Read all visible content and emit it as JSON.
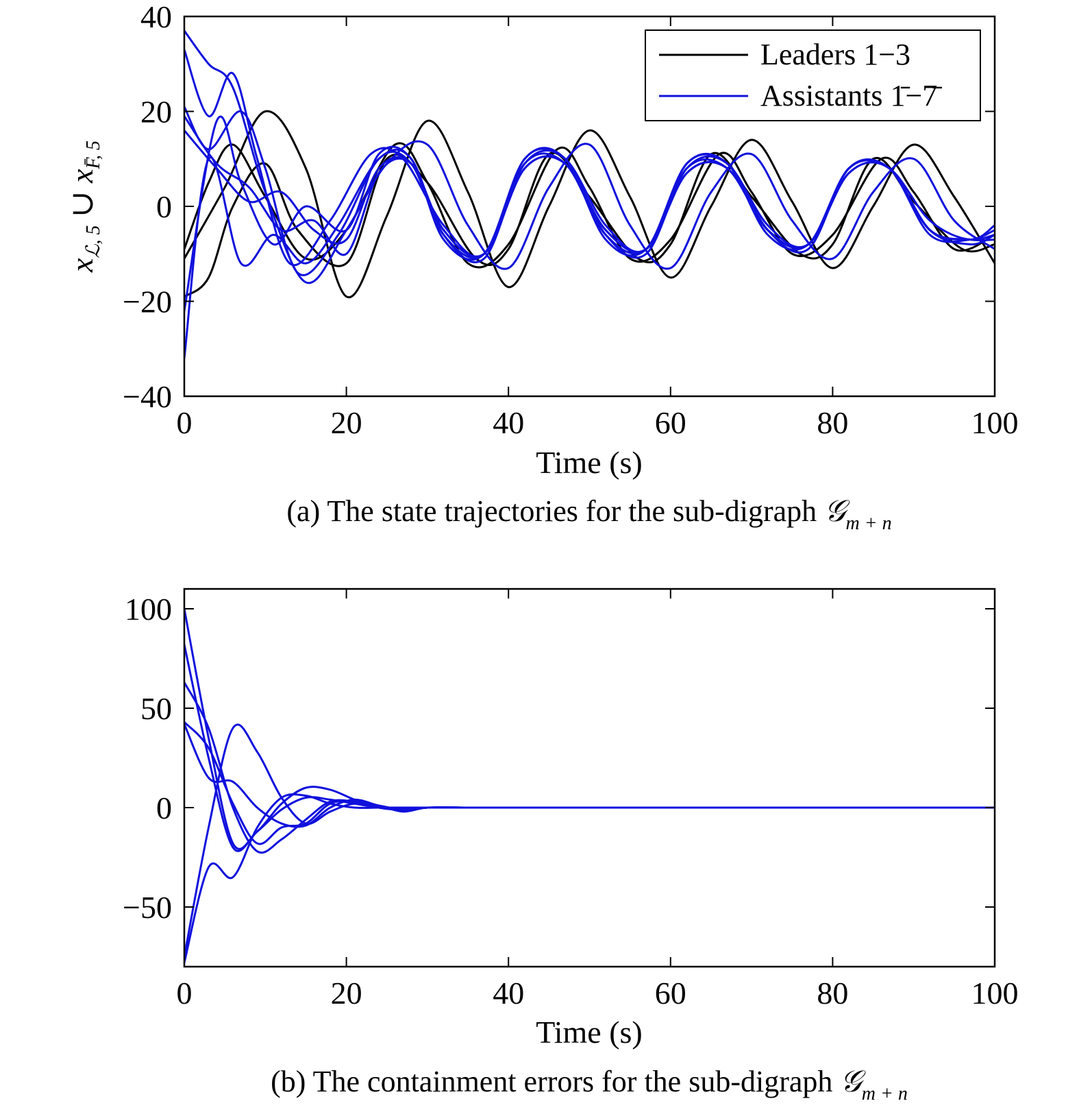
{
  "chart_data": [
    {
      "type": "line",
      "caption": "(a) The state trajectories for the sub-digraph ",
      "caption_math": "𝒢",
      "caption_sub": "m + n",
      "xlabel": "Time (s)",
      "ylabel": {
        "x1": "x",
        "sub1": "ℒ, 5",
        "union": " ∪ ",
        "x2": "x",
        "sub2": "F̄, 5"
      },
      "xlim": [
        0,
        100
      ],
      "ylim": [
        -40,
        40
      ],
      "xticks": [
        "0",
        "20",
        "40",
        "60",
        "80",
        "100"
      ],
      "yticks": [
        "−40",
        "−20",
        "0",
        "20",
        "40"
      ],
      "xtick_values": [
        0,
        20,
        40,
        60,
        80,
        100
      ],
      "ytick_values": [
        -40,
        -20,
        0,
        20,
        40
      ],
      "grid": false,
      "legend_position": "top-right",
      "legend": [
        {
          "label": "Leaders 1−3",
          "color": "#000000"
        },
        {
          "label": "Assistants 1̄−7̄",
          "color": "#1010dd"
        }
      ],
      "series": [
        {
          "group": "Leaders 1−3",
          "color": "#000000",
          "x": [
            0,
            5,
            10,
            15,
            20,
            25,
            30,
            35,
            40,
            45,
            50,
            55,
            60,
            65,
            70,
            75,
            80,
            85,
            90,
            95,
            100
          ],
          "y": [
            -11,
            4,
            20,
            8,
            -19,
            -2,
            18,
            3,
            -17,
            0,
            16,
            2,
            -15,
            0,
            14,
            1,
            -13,
            0,
            13,
            2,
            -12
          ]
        },
        {
          "group": "Leaders 1−3",
          "color": "#000000",
          "x": [
            0,
            3,
            6,
            10,
            14,
            20,
            25,
            30,
            36,
            40,
            45,
            50,
            56,
            60,
            65,
            70,
            76,
            80,
            85,
            90,
            96,
            100
          ],
          "y": [
            -19,
            -15,
            0,
            9,
            -5,
            -12,
            10,
            5,
            -11,
            -9,
            11,
            2,
            -11,
            -8,
            11,
            2,
            -10,
            -8,
            10,
            1,
            -9,
            -8
          ]
        },
        {
          "group": "Leaders 1−3",
          "color": "#000000",
          "x": [
            0,
            3,
            6,
            10,
            15,
            20,
            26,
            30,
            35,
            40,
            46,
            50,
            55,
            60,
            66,
            70,
            75,
            80,
            86,
            90,
            95,
            100
          ],
          "y": [
            -9,
            5,
            13,
            2,
            -11,
            -5,
            13,
            5,
            -12,
            -8,
            12,
            4,
            -11,
            -7,
            11,
            3,
            -10,
            -6,
            10,
            3,
            -9,
            -6
          ]
        },
        {
          "group": "Assistants 1̄−7̄",
          "color": "#1010dd",
          "x": [
            0,
            3,
            6,
            10,
            15,
            20,
            25,
            30,
            35,
            40,
            45,
            50,
            55,
            60,
            65,
            70,
            75,
            80,
            85,
            90,
            95,
            100
          ],
          "y": [
            37,
            30,
            25,
            3,
            -16,
            -5,
            9,
            13,
            -4,
            -13,
            4,
            13,
            -4,
            -13,
            3,
            11,
            -3,
            -11,
            3,
            10,
            -3,
            -9
          ]
        },
        {
          "group": "Assistants 1̄−7̄",
          "color": "#1010dd",
          "x": [
            0,
            3,
            6,
            9,
            13,
            18,
            23,
            27,
            32,
            37,
            42,
            47,
            52,
            57,
            62,
            67,
            72,
            77,
            82,
            87,
            92,
            97,
            100
          ],
          "y": [
            33,
            19,
            28,
            10,
            -12,
            -3,
            11,
            10,
            -4,
            -10,
            10,
            10,
            -4,
            -9,
            9,
            9,
            -4,
            -8,
            8,
            8,
            -3,
            -7,
            -4
          ]
        },
        {
          "group": "Assistants 1̄−7̄",
          "color": "#1010dd",
          "x": [
            0,
            3,
            7,
            10,
            14,
            19,
            24,
            28,
            32,
            37,
            42,
            47,
            52,
            57,
            62,
            67,
            72,
            77,
            82,
            87,
            92,
            97,
            100
          ],
          "y": [
            21,
            12,
            20,
            8,
            -14,
            -6,
            10,
            9,
            -6,
            -10,
            9,
            9,
            -6,
            -9,
            8,
            8,
            -5,
            -8,
            8,
            8,
            -5,
            -7,
            -6
          ]
        },
        {
          "group": "Assistants 1̄−7̄",
          "color": "#1010dd",
          "x": [
            0,
            4,
            8,
            12,
            16,
            20,
            24,
            28,
            32,
            37,
            42,
            47,
            52,
            57,
            62,
            67,
            72,
            77,
            82,
            87,
            92,
            97,
            100
          ],
          "y": [
            16,
            8,
            1,
            3,
            -5,
            -7,
            8,
            9,
            -5,
            -10,
            8,
            9,
            -5,
            -9,
            7,
            8,
            -5,
            -8,
            7,
            8,
            -5,
            -7,
            -7
          ]
        },
        {
          "group": "Assistants 1̄−7̄",
          "color": "#1010dd",
          "x": [
            0,
            4,
            8,
            12,
            16,
            20,
            24,
            28,
            32,
            37,
            42,
            47,
            52,
            57,
            62,
            67,
            72,
            77,
            82,
            87,
            92,
            97,
            100
          ],
          "y": [
            19,
            9,
            4,
            -5,
            -3,
            -10,
            7,
            9,
            -5,
            -10,
            8,
            9,
            -5,
            -9,
            7,
            8,
            -5,
            -8,
            7,
            8,
            -5,
            -7,
            -6
          ]
        },
        {
          "group": "Assistants 1̄−7̄",
          "color": "#1010dd",
          "x": [
            0,
            4,
            7,
            11,
            15,
            20,
            24,
            28,
            32,
            37,
            42,
            47,
            52,
            57,
            62,
            67,
            72,
            77,
            82,
            87,
            92,
            97,
            100
          ],
          "y": [
            -22,
            18,
            5,
            -8,
            0,
            -5,
            11,
            10,
            -6,
            -11,
            9,
            10,
            -6,
            -10,
            8,
            9,
            -5,
            -9,
            8,
            8,
            -5,
            -8,
            -6
          ]
        },
        {
          "group": "Assistants 1̄−7̄",
          "color": "#1010dd",
          "x": [
            0,
            3,
            7,
            11,
            15,
            19,
            24,
            28,
            32,
            37,
            42,
            47,
            52,
            57,
            62,
            67,
            72,
            77,
            82,
            87,
            92,
            97,
            100
          ],
          "y": [
            -32,
            10,
            -12,
            -6,
            -12,
            -4,
            10,
            10,
            -7,
            -10,
            10,
            10,
            -7,
            -9,
            9,
            9,
            -6,
            -8,
            8,
            8,
            -6,
            -7,
            -5
          ]
        }
      ]
    },
    {
      "type": "line",
      "caption": "(b) The containment errors for the sub-digraph ",
      "caption_math": "𝒢",
      "caption_sub": "m + n",
      "xlabel": "Time (s)",
      "ylabel": "",
      "xlim": [
        0,
        100
      ],
      "ylim": [
        -80,
        110
      ],
      "xticks": [
        "0",
        "20",
        "40",
        "60",
        "80",
        "100"
      ],
      "yticks": [
        "−50",
        "0",
        "50",
        "100"
      ],
      "xtick_values": [
        0,
        20,
        40,
        60,
        80,
        100
      ],
      "ytick_values": [
        -50,
        0,
        50,
        100
      ],
      "grid": false,
      "series": [
        {
          "color": "#1010dd",
          "x": [
            0,
            3,
            6,
            9,
            12,
            15,
            18,
            21,
            24,
            27,
            30,
            35,
            40,
            50,
            100
          ],
          "y": [
            100,
            35,
            -18,
            -12,
            2,
            10,
            9,
            4,
            0,
            -1,
            0,
            0,
            0,
            0,
            0
          ]
        },
        {
          "color": "#1010dd",
          "x": [
            0,
            3,
            6,
            9,
            12,
            15,
            18,
            21,
            24,
            27,
            30,
            35,
            40,
            50,
            100
          ],
          "y": [
            82,
            25,
            -20,
            -12,
            -1,
            5,
            4,
            2,
            0,
            -1,
            0,
            0,
            0,
            0,
            0
          ]
        },
        {
          "color": "#1010dd",
          "x": [
            0,
            3,
            6,
            9,
            12,
            15,
            18,
            21,
            24,
            27,
            30,
            35,
            40,
            50,
            100
          ],
          "y": [
            63,
            40,
            0,
            -22,
            -16,
            -6,
            3,
            3,
            1,
            -2,
            0,
            0,
            0,
            0,
            0
          ]
        },
        {
          "color": "#1010dd",
          "x": [
            0,
            3,
            6,
            9,
            12,
            15,
            18,
            21,
            24,
            27,
            30,
            35,
            40,
            50,
            100
          ],
          "y": [
            43,
            30,
            2,
            -18,
            -10,
            -8,
            2,
            3,
            1,
            -1,
            0,
            0,
            0,
            0,
            0
          ]
        },
        {
          "color": "#1010dd",
          "x": [
            0,
            3,
            6,
            9,
            12,
            15,
            18,
            21,
            24,
            27,
            30,
            35,
            40,
            50,
            100
          ],
          "y": [
            -75,
            -10,
            40,
            28,
            5,
            -8,
            -2,
            2,
            0,
            -1,
            0,
            0,
            0,
            0,
            0
          ]
        },
        {
          "color": "#1010dd",
          "x": [
            0,
            3,
            6,
            9,
            12,
            15,
            18,
            21,
            24,
            27,
            30,
            35,
            40,
            50,
            100
          ],
          "y": [
            -78,
            -30,
            -35,
            -10,
            5,
            6,
            2,
            0,
            0,
            0,
            0,
            0,
            0,
            0,
            0
          ]
        },
        {
          "color": "#1010dd",
          "x": [
            0,
            3,
            6,
            9,
            12,
            15,
            18,
            21,
            24,
            27,
            30,
            35,
            40,
            50,
            100
          ],
          "y": [
            42,
            15,
            13,
            0,
            -8,
            -9,
            0,
            4,
            1,
            -1,
            0,
            0,
            0,
            0,
            0
          ]
        }
      ]
    }
  ]
}
